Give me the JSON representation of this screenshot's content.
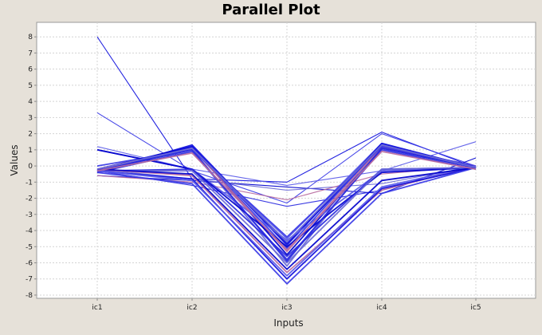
{
  "chart_data": {
    "type": "line",
    "title": "Parallel Plot",
    "xlabel": "Inputs",
    "ylabel": "Values",
    "categories": [
      "ic1",
      "ic2",
      "ic3",
      "ic4",
      "ic5"
    ],
    "ylim": [
      -8.2,
      8.9
    ],
    "yticks": [
      8,
      7,
      6,
      5,
      4,
      3,
      2,
      1,
      0,
      -1,
      -2,
      -3,
      -4,
      -5,
      -6,
      -7,
      -8
    ],
    "grid": true,
    "legend": "none",
    "series": [
      {
        "values": [
          8.0,
          -0.8,
          -1.0,
          2.1,
          -0.1
        ]
      },
      {
        "values": [
          3.3,
          -0.3,
          -2.3,
          2.0,
          0.0
        ]
      },
      {
        "values": [
          1.2,
          -0.2,
          -1.2,
          -0.3,
          1.5
        ]
      },
      {
        "values": [
          -0.6,
          -0.9,
          -1.3,
          -1.7,
          0.5
        ]
      },
      {
        "values": [
          -0.3,
          -1.2,
          -2.5,
          -1.5,
          0.0
        ]
      },
      {
        "values": [
          -0.2,
          -0.8,
          -1.5,
          -1.1,
          0.0
        ]
      },
      {
        "values": [
          -0.6,
          -1.0,
          -2.1,
          -0.5,
          0.0
        ]
      },
      {
        "values": [
          -0.4,
          1.3,
          -4.8,
          1.2,
          -0.1
        ]
      },
      {
        "values": [
          -0.3,
          1.1,
          -5.1,
          1.3,
          -0.1
        ]
      },
      {
        "values": [
          -0.3,
          1.0,
          -4.5,
          1.4,
          -0.1
        ]
      },
      {
        "values": [
          -0.2,
          1.2,
          -5.5,
          1.1,
          -0.1
        ]
      },
      {
        "values": [
          -0.4,
          0.9,
          -5.8,
          1.0,
          -0.2
        ]
      },
      {
        "values": [
          -0.3,
          1.0,
          -6.2,
          1.3,
          -0.1
        ]
      },
      {
        "values": [
          -0.2,
          1.1,
          -5.3,
          1.2,
          0.0
        ]
      },
      {
        "values": [
          -0.4,
          1.2,
          -4.9,
          1.4,
          -0.1
        ]
      },
      {
        "values": [
          0.0,
          1.0,
          -4.4,
          1.2,
          0.0
        ]
      },
      {
        "values": [
          1.0,
          -0.2,
          -4.6,
          -0.3,
          -0.1
        ]
      },
      {
        "values": [
          1.0,
          -0.2,
          -5.0,
          -0.4,
          -0.1
        ]
      },
      {
        "values": [
          -0.3,
          -0.2,
          -5.6,
          -0.2,
          -0.1
        ]
      },
      {
        "values": [
          -0.3,
          -0.3,
          -6.0,
          -0.2,
          -0.1
        ]
      },
      {
        "values": [
          -0.2,
          -0.6,
          -6.6,
          -1.5,
          0.0
        ]
      },
      {
        "values": [
          -0.3,
          -0.8,
          -7.0,
          -1.4,
          -0.1
        ]
      },
      {
        "values": [
          -0.4,
          -1.1,
          -7.3,
          -1.7,
          -0.1
        ]
      },
      {
        "values": [
          -0.3,
          -0.9,
          -6.8,
          -1.3,
          0.0
        ]
      },
      {
        "values": [
          -0.2,
          -0.5,
          -6.4,
          -0.9,
          -0.1
        ]
      },
      {
        "values": [
          -0.3,
          1.0,
          -5.9,
          1.1,
          -0.1
        ]
      },
      {
        "values": [
          -0.2,
          1.1,
          -4.7,
          1.3,
          -0.1
        ]
      },
      {
        "values": [
          -0.3,
          0.8,
          -5.2,
          0.9,
          -0.2
        ]
      }
    ],
    "colors": {
      "plot_bg": "#ffffff",
      "page_bg": "#e6e1d9",
      "grid": "#d4d4d4",
      "axis": "#8c8c8c",
      "lines": [
        "#1010dd",
        "#3a3ae6",
        "#5a5ae8",
        "#0000cc",
        "#2b2be0",
        "#6a6ad6",
        "#b86ba0"
      ]
    }
  }
}
